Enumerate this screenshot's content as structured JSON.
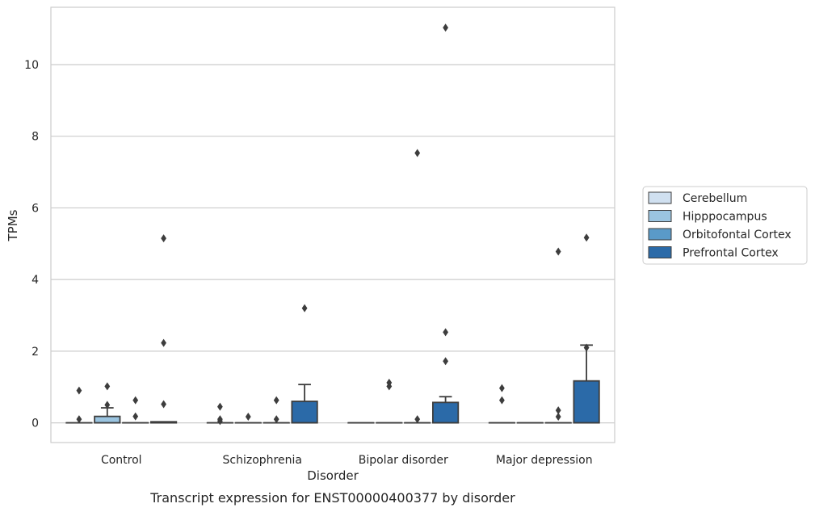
{
  "chart_data": {
    "type": "box",
    "caption": "Transcript expression for ENST00000400377 by disorder",
    "xlabel": "Disorder",
    "ylabel": "TPMs",
    "ylim": [
      -0.55,
      11.6
    ],
    "yticks": [
      0,
      2,
      4,
      6,
      8,
      10
    ],
    "grid": "horizontal",
    "legend_position": "right",
    "categories": [
      "Control",
      "Schizophrenia",
      "Bipolar disorder",
      "Major depression"
    ],
    "series": [
      {
        "name": "Cerebellum",
        "color": "#d0e0f0",
        "boxes": [
          {
            "q1": 0,
            "median": 0,
            "q3": 0,
            "whisker_low": 0,
            "whisker_high": 0,
            "outliers": [
              0.1,
              0.9
            ]
          },
          {
            "q1": 0,
            "median": 0,
            "q3": 0,
            "whisker_low": 0,
            "whisker_high": 0,
            "outliers": [
              0.05,
              0.1,
              0.45
            ]
          },
          {
            "q1": 0,
            "median": 0,
            "q3": 0,
            "whisker_low": 0,
            "whisker_high": 0,
            "outliers": []
          },
          {
            "q1": 0,
            "median": 0,
            "q3": 0,
            "whisker_low": 0,
            "whisker_high": 0,
            "outliers": [
              0.63,
              0.97
            ]
          }
        ]
      },
      {
        "name": "Hipppocampus",
        "color": "#9ac4e0",
        "boxes": [
          {
            "q1": 0,
            "median": 0,
            "q3": 0.18,
            "whisker_low": 0,
            "whisker_high": 0.42,
            "outliers": [
              0.5,
              1.02
            ]
          },
          {
            "q1": 0,
            "median": 0,
            "q3": 0,
            "whisker_low": 0,
            "whisker_high": 0,
            "outliers": [
              0.17
            ]
          },
          {
            "q1": 0,
            "median": 0,
            "q3": 0,
            "whisker_low": 0,
            "whisker_high": 0,
            "outliers": [
              1.02,
              1.12
            ]
          },
          {
            "q1": 0,
            "median": 0,
            "q3": 0,
            "whisker_low": 0,
            "whisker_high": 0,
            "outliers": []
          }
        ]
      },
      {
        "name": "Orbitofontal Cortex",
        "color": "#5a9ac8",
        "boxes": [
          {
            "q1": 0,
            "median": 0,
            "q3": 0,
            "whisker_low": 0,
            "whisker_high": 0,
            "outliers": [
              0.18,
              0.63
            ]
          },
          {
            "q1": 0,
            "median": 0,
            "q3": 0,
            "whisker_low": 0,
            "whisker_high": 0,
            "outliers": [
              0.1,
              0.63
            ]
          },
          {
            "q1": 0,
            "median": 0,
            "q3": 0,
            "whisker_low": 0,
            "whisker_high": 0,
            "outliers": [
              0.1,
              7.53
            ]
          },
          {
            "q1": 0,
            "median": 0,
            "q3": 0,
            "whisker_low": 0,
            "whisker_high": 0,
            "outliers": [
              0.17,
              0.35,
              4.78
            ]
          }
        ]
      },
      {
        "name": "Prefrontal Cortex",
        "color": "#2b6aa8",
        "boxes": [
          {
            "q1": 0,
            "median": 0,
            "q3": 0.03,
            "whisker_low": 0,
            "whisker_high": 0.03,
            "outliers": [
              0.52,
              2.23,
              5.15
            ]
          },
          {
            "q1": 0,
            "median": 0,
            "q3": 0.6,
            "whisker_low": 0,
            "whisker_high": 1.07,
            "outliers": [
              3.2
            ]
          },
          {
            "q1": 0,
            "median": 0,
            "q3": 0.57,
            "whisker_low": 0,
            "whisker_high": 0.73,
            "outliers": [
              1.72,
              2.53,
              11.03
            ]
          },
          {
            "q1": 0,
            "median": 0,
            "q3": 1.17,
            "whisker_low": 0,
            "whisker_high": 2.17,
            "outliers": [
              2.1,
              5.17
            ]
          }
        ]
      }
    ]
  }
}
